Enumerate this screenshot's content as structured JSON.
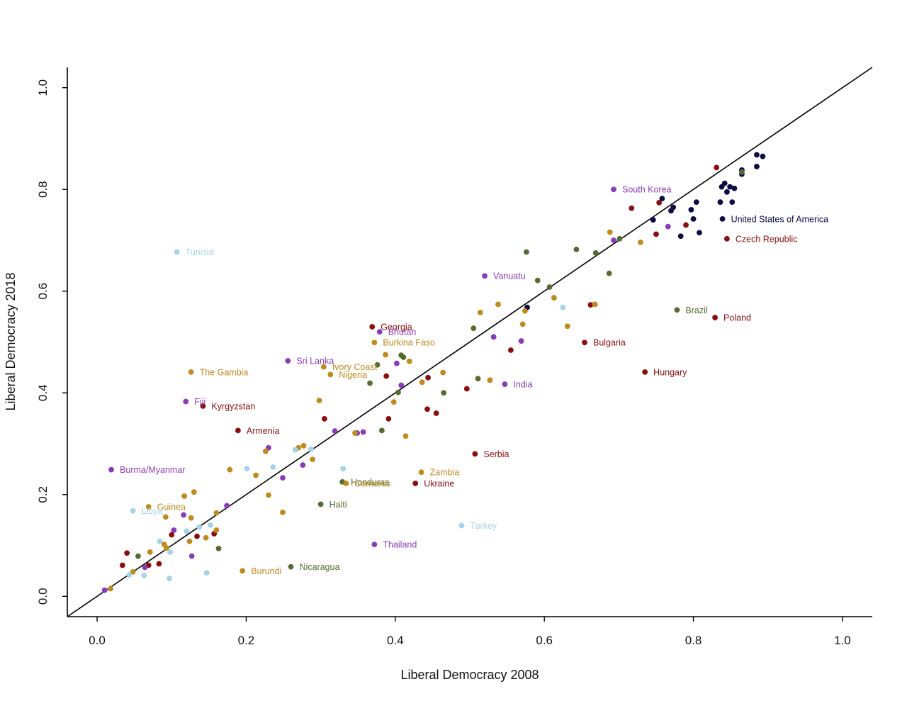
{
  "chart_data": {
    "type": "scatter",
    "title": "",
    "xlabel": "Liberal Democracy 2008",
    "ylabel": "Liberal Democracy 2018",
    "xlim": [
      -0.04,
      1.04
    ],
    "ylim": [
      -0.04,
      1.04
    ],
    "xticks": [
      "0.0",
      "0.2",
      "0.4",
      "0.6",
      "0.8",
      "1.0"
    ],
    "yticks": [
      "0.0",
      "0.2",
      "0.4",
      "0.6",
      "0.8",
      "1.0"
    ],
    "grid": false,
    "legend": "none",
    "reference_line": {
      "from": [
        -0.04,
        -0.04
      ],
      "to": [
        1.04,
        1.04
      ]
    },
    "colors": {
      "navy": "#0b0b45",
      "red": "#8b0e0e",
      "purple": "#8a3bb8",
      "gold": "#c08a1e",
      "green": "#556b2f",
      "lightblue": "#a5d4e6"
    },
    "labeled_points": [
      {
        "label": "South Korea",
        "x": 0.693,
        "y": 0.8,
        "color": "purple"
      },
      {
        "label": "United States of America",
        "x": 0.839,
        "y": 0.742,
        "color": "navy"
      },
      {
        "label": "Czech Republic",
        "x": 0.845,
        "y": 0.703,
        "color": "red"
      },
      {
        "label": "Tunisia",
        "x": 0.107,
        "y": 0.677,
        "color": "lightblue"
      },
      {
        "label": "Vanuatu",
        "x": 0.52,
        "y": 0.63,
        "color": "purple"
      },
      {
        "label": "Brazil",
        "x": 0.778,
        "y": 0.563,
        "color": "green"
      },
      {
        "label": "Poland",
        "x": 0.829,
        "y": 0.548,
        "color": "red"
      },
      {
        "label": "Georgia",
        "x": 0.369,
        "y": 0.53,
        "color": "red"
      },
      {
        "label": "Bhutan",
        "x": 0.379,
        "y": 0.52,
        "color": "purple"
      },
      {
        "label": "Burkina Faso",
        "x": 0.372,
        "y": 0.499,
        "color": "gold"
      },
      {
        "label": "Bulgaria",
        "x": 0.654,
        "y": 0.499,
        "color": "red"
      },
      {
        "label": "Sri Lanka",
        "x": 0.256,
        "y": 0.463,
        "color": "purple"
      },
      {
        "label": "Ivory Coast",
        "x": 0.304,
        "y": 0.451,
        "color": "gold"
      },
      {
        "label": "Nigeria",
        "x": 0.313,
        "y": 0.436,
        "color": "gold"
      },
      {
        "label": "The Gambia",
        "x": 0.126,
        "y": 0.441,
        "color": "gold"
      },
      {
        "label": "Hungary",
        "x": 0.735,
        "y": 0.441,
        "color": "red"
      },
      {
        "label": "India",
        "x": 0.547,
        "y": 0.417,
        "color": "purple"
      },
      {
        "label": "Fiji",
        "x": 0.119,
        "y": 0.383,
        "color": "purple"
      },
      {
        "label": "Kyrgyzstan",
        "x": 0.142,
        "y": 0.374,
        "color": "red"
      },
      {
        "label": "Armenia",
        "x": 0.189,
        "y": 0.326,
        "color": "red"
      },
      {
        "label": "Serbia",
        "x": 0.507,
        "y": 0.28,
        "color": "red"
      },
      {
        "label": "Burma/Myanmar",
        "x": 0.019,
        "y": 0.249,
        "color": "purple"
      },
      {
        "label": "Zambia",
        "x": 0.435,
        "y": 0.244,
        "color": "gold"
      },
      {
        "label": "Honduras",
        "x": 0.329,
        "y": 0.225,
        "color": "green"
      },
      {
        "label": "Comoros",
        "x": 0.334,
        "y": 0.222,
        "color": "gold"
      },
      {
        "label": "Ukraine",
        "x": 0.427,
        "y": 0.222,
        "color": "red"
      },
      {
        "label": "Guinea",
        "x": 0.069,
        "y": 0.176,
        "color": "gold"
      },
      {
        "label": "Libya",
        "x": 0.048,
        "y": 0.168,
        "color": "lightblue"
      },
      {
        "label": "Haiti",
        "x": 0.3,
        "y": 0.181,
        "color": "green"
      },
      {
        "label": "Turkey",
        "x": 0.489,
        "y": 0.139,
        "color": "lightblue"
      },
      {
        "label": "Thailand",
        "x": 0.372,
        "y": 0.102,
        "color": "purple"
      },
      {
        "label": "Burundi",
        "x": 0.195,
        "y": 0.05,
        "color": "gold"
      },
      {
        "label": "Nicaragua",
        "x": 0.26,
        "y": 0.058,
        "color": "green"
      }
    ],
    "series": [
      {
        "color": "navy",
        "points": [
          [
            0.885,
            0.868
          ],
          [
            0.893,
            0.865
          ],
          [
            0.885,
            0.845
          ],
          [
            0.865,
            0.83
          ],
          [
            0.865,
            0.838
          ],
          [
            0.842,
            0.812
          ],
          [
            0.849,
            0.805
          ],
          [
            0.855,
            0.802
          ],
          [
            0.838,
            0.805
          ],
          [
            0.845,
            0.795
          ],
          [
            0.836,
            0.775
          ],
          [
            0.852,
            0.775
          ],
          [
            0.804,
            0.775
          ],
          [
            0.797,
            0.76
          ],
          [
            0.773,
            0.765
          ],
          [
            0.77,
            0.758
          ],
          [
            0.758,
            0.782
          ],
          [
            0.746,
            0.74
          ],
          [
            0.8,
            0.742
          ],
          [
            0.808,
            0.715
          ],
          [
            0.783,
            0.708
          ],
          [
            0.577,
            0.568
          ]
        ]
      },
      {
        "color": "red",
        "points": [
          [
            0.831,
            0.843
          ],
          [
            0.754,
            0.774
          ],
          [
            0.717,
            0.763
          ],
          [
            0.75,
            0.712
          ],
          [
            0.79,
            0.73
          ],
          [
            0.662,
            0.573
          ],
          [
            0.555,
            0.484
          ],
          [
            0.444,
            0.43
          ],
          [
            0.388,
            0.433
          ],
          [
            0.496,
            0.408
          ],
          [
            0.443,
            0.368
          ],
          [
            0.455,
            0.36
          ],
          [
            0.391,
            0.349
          ],
          [
            0.305,
            0.349
          ],
          [
            0.04,
            0.085
          ],
          [
            0.034,
            0.061
          ],
          [
            0.069,
            0.061
          ],
          [
            0.083,
            0.064
          ],
          [
            0.1,
            0.121
          ],
          [
            0.134,
            0.118
          ],
          [
            0.157,
            0.123
          ]
        ]
      },
      {
        "color": "purple",
        "points": [
          [
            0.693,
            0.7
          ],
          [
            0.766,
            0.727
          ],
          [
            0.532,
            0.51
          ],
          [
            0.569,
            0.502
          ],
          [
            0.402,
            0.458
          ],
          [
            0.408,
            0.415
          ],
          [
            0.319,
            0.325
          ],
          [
            0.349,
            0.321
          ],
          [
            0.357,
            0.323
          ],
          [
            0.23,
            0.292
          ],
          [
            0.276,
            0.258
          ],
          [
            0.249,
            0.233
          ],
          [
            0.174,
            0.178
          ],
          [
            0.116,
            0.16
          ],
          [
            0.103,
            0.13
          ],
          [
            0.127,
            0.079
          ],
          [
            0.064,
            0.057
          ],
          [
            0.01,
            0.012
          ]
        ]
      },
      {
        "color": "gold",
        "points": [
          [
            0.688,
            0.716
          ],
          [
            0.729,
            0.696
          ],
          [
            0.668,
            0.574
          ],
          [
            0.613,
            0.587
          ],
          [
            0.538,
            0.574
          ],
          [
            0.514,
            0.558
          ],
          [
            0.574,
            0.561
          ],
          [
            0.571,
            0.535
          ],
          [
            0.631,
            0.531
          ],
          [
            0.527,
            0.425
          ],
          [
            0.436,
            0.421
          ],
          [
            0.464,
            0.44
          ],
          [
            0.419,
            0.462
          ],
          [
            0.387,
            0.475
          ],
          [
            0.398,
            0.382
          ],
          [
            0.414,
            0.315
          ],
          [
            0.298,
            0.385
          ],
          [
            0.346,
            0.321
          ],
          [
            0.226,
            0.285
          ],
          [
            0.277,
            0.296
          ],
          [
            0.27,
            0.292
          ],
          [
            0.289,
            0.269
          ],
          [
            0.178,
            0.249
          ],
          [
            0.213,
            0.238
          ],
          [
            0.13,
            0.205
          ],
          [
            0.117,
            0.197
          ],
          [
            0.23,
            0.199
          ],
          [
            0.249,
            0.165
          ],
          [
            0.16,
            0.164
          ],
          [
            0.126,
            0.154
          ],
          [
            0.092,
            0.156
          ],
          [
            0.16,
            0.13
          ],
          [
            0.146,
            0.115
          ],
          [
            0.124,
            0.108
          ],
          [
            0.09,
            0.102
          ],
          [
            0.093,
            0.095
          ],
          [
            0.071,
            0.087
          ],
          [
            0.048,
            0.048
          ],
          [
            0.018,
            0.015
          ]
        ]
      },
      {
        "color": "green",
        "points": [
          [
            0.865,
            0.834
          ],
          [
            0.576,
            0.677
          ],
          [
            0.643,
            0.682
          ],
          [
            0.669,
            0.675
          ],
          [
            0.701,
            0.703
          ],
          [
            0.591,
            0.621
          ],
          [
            0.607,
            0.608
          ],
          [
            0.687,
            0.635
          ],
          [
            0.505,
            0.527
          ],
          [
            0.376,
            0.455
          ],
          [
            0.408,
            0.474
          ],
          [
            0.411,
            0.47
          ],
          [
            0.366,
            0.419
          ],
          [
            0.404,
            0.401
          ],
          [
            0.465,
            0.4
          ],
          [
            0.511,
            0.428
          ],
          [
            0.382,
            0.326
          ],
          [
            0.055,
            0.079
          ],
          [
            0.163,
            0.094
          ]
        ]
      },
      {
        "color": "lightblue",
        "points": [
          [
            0.625,
            0.568
          ],
          [
            0.33,
            0.251
          ],
          [
            0.201,
            0.251
          ],
          [
            0.236,
            0.254
          ],
          [
            0.266,
            0.288
          ],
          [
            0.287,
            0.289
          ],
          [
            0.152,
            0.14
          ],
          [
            0.137,
            0.136
          ],
          [
            0.12,
            0.128
          ],
          [
            0.084,
            0.108
          ],
          [
            0.098,
            0.087
          ],
          [
            0.063,
            0.041
          ],
          [
            0.043,
            0.042
          ],
          [
            0.147,
            0.046
          ],
          [
            0.097,
            0.035
          ]
        ]
      }
    ]
  }
}
